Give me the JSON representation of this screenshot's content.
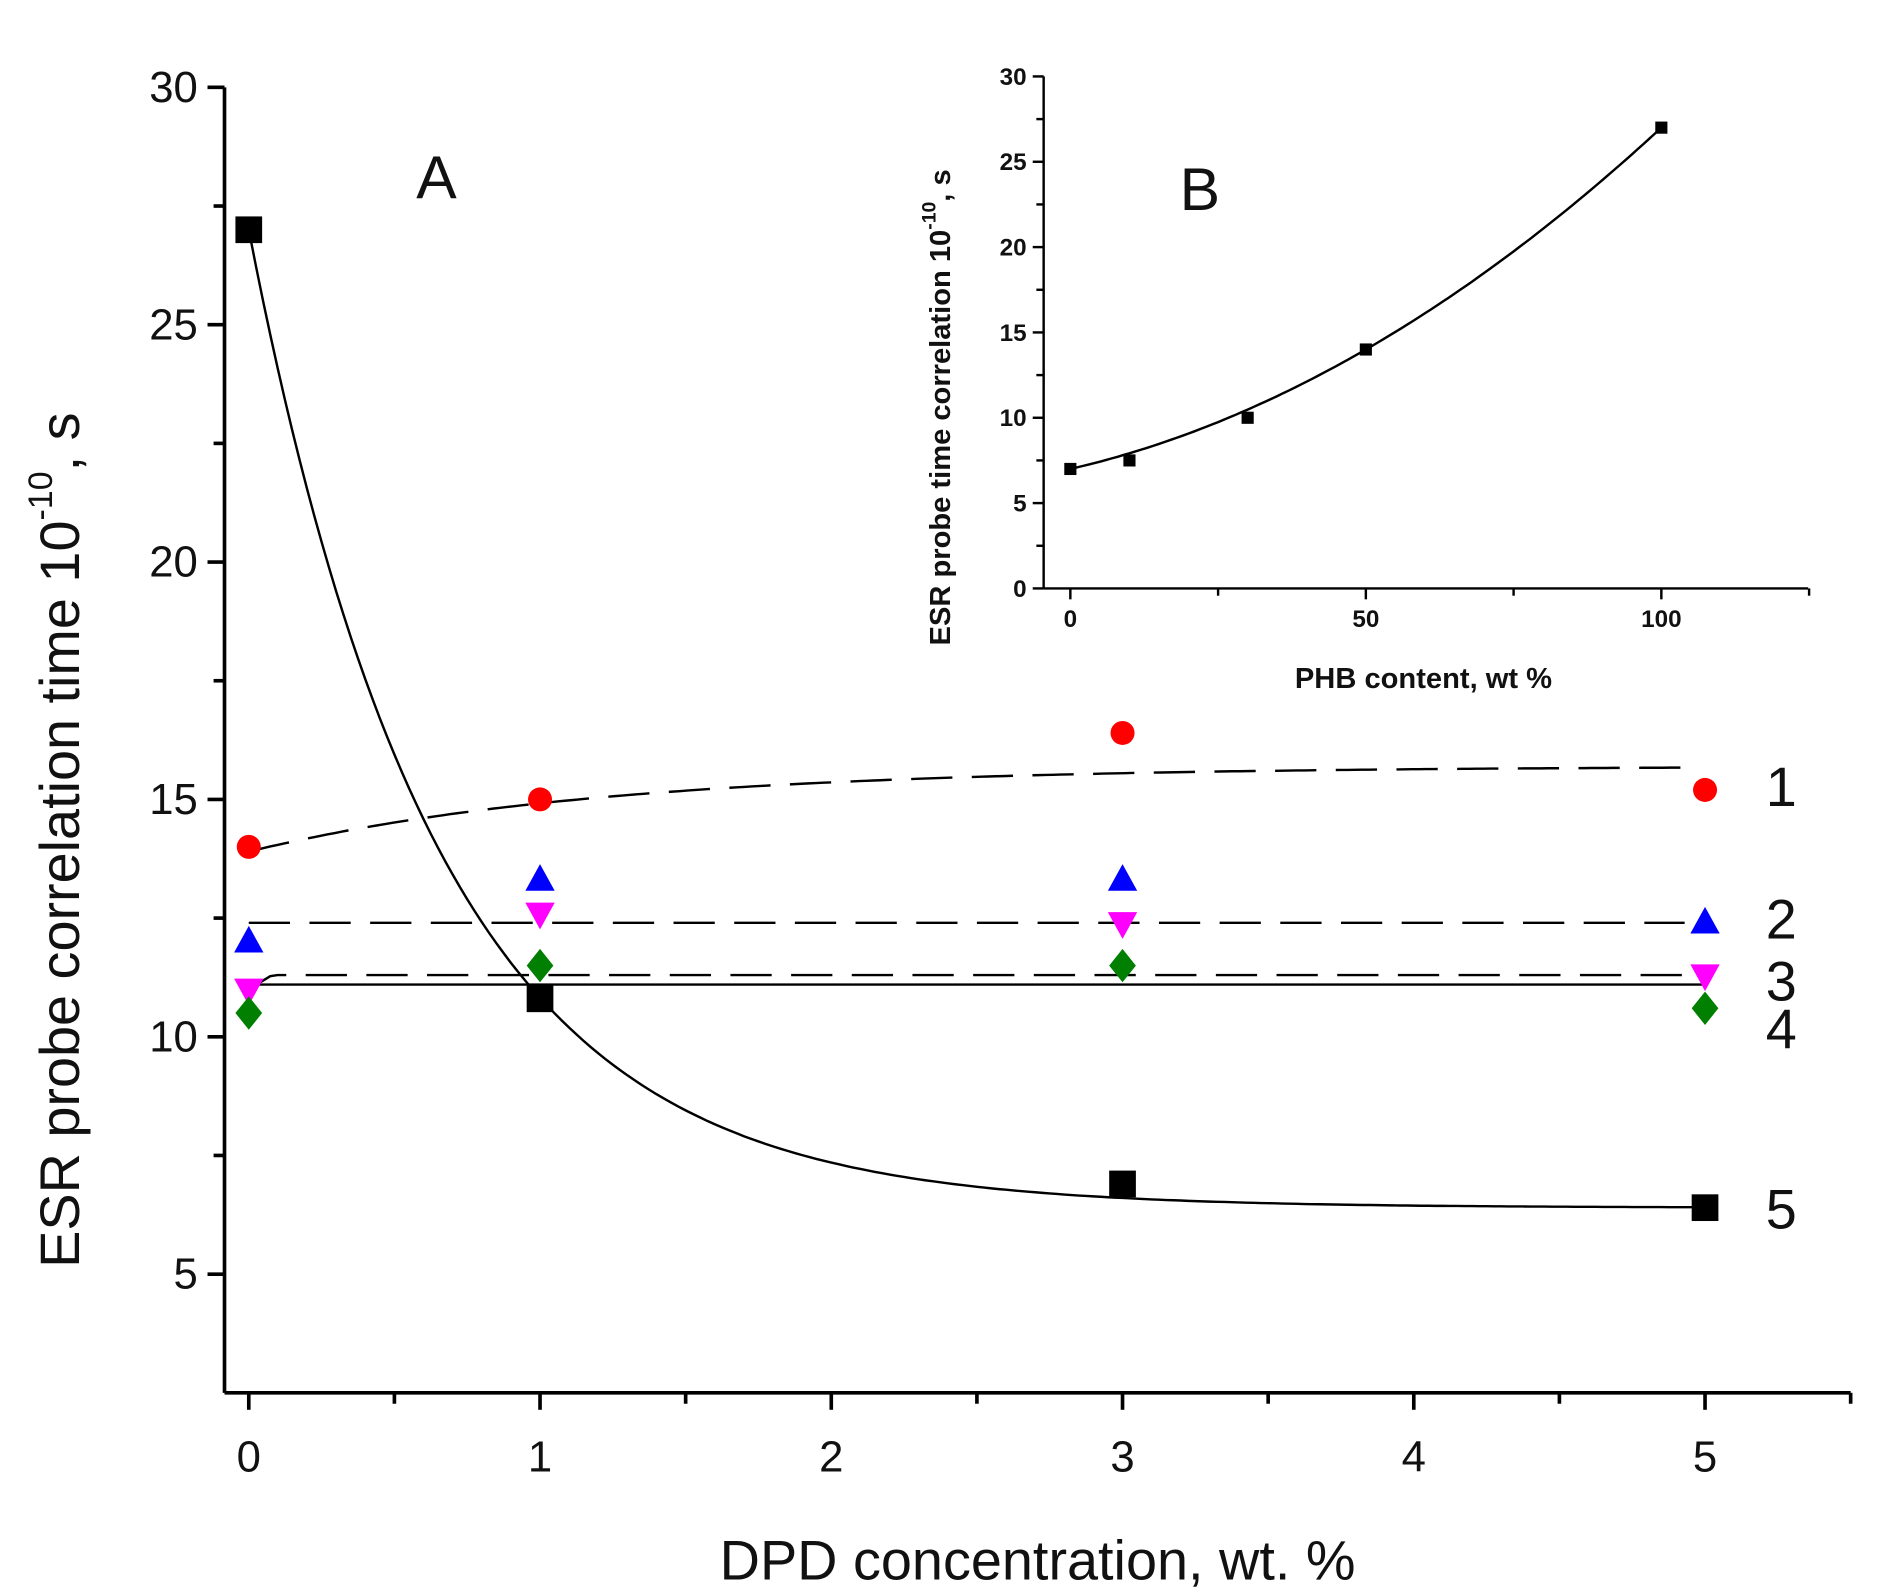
{
  "chart_data": [
    {
      "type": "scatter",
      "panel_label": "A",
      "xlabel": "DPD concentration, wt. %",
      "ylabel": {
        "text": "ESR probe correlation time 10",
        "sup": "-10",
        "suffix": ", s"
      },
      "xlim": [
        -0.08,
        5.5
      ],
      "ylim": [
        2.5,
        30
      ],
      "xticks": [
        "0",
        "1",
        "2",
        "3",
        "4",
        "5"
      ],
      "yticks": [
        "5",
        "10",
        "15",
        "20",
        "25",
        "30"
      ],
      "x": [
        0,
        1,
        3,
        5
      ],
      "series": [
        {
          "name": "1",
          "marker": "circle",
          "color": "#ff0000",
          "values": [
            14.0,
            15.0,
            16.4,
            15.2
          ],
          "fit": "dashed"
        },
        {
          "name": "2",
          "marker": "triangle-up",
          "color": "#0000ff",
          "values": [
            12.0,
            13.3,
            13.3,
            12.4
          ],
          "fit": "dashed"
        },
        {
          "name": "3",
          "marker": "triangle-down",
          "color": "#ff00ff",
          "values": [
            11.0,
            12.6,
            12.4,
            11.3
          ],
          "fit": "dashed"
        },
        {
          "name": "4",
          "marker": "diamond",
          "color": "#007f00",
          "values": [
            10.5,
            11.5,
            11.5,
            10.6
          ],
          "fit": "solid"
        },
        {
          "name": "5",
          "marker": "square",
          "color": "#000000",
          "values": [
            27.0,
            10.8,
            6.9,
            6.4
          ],
          "fit": "solid"
        }
      ]
    },
    {
      "type": "line",
      "panel_label": "B",
      "xlabel": "PHB content, wt %",
      "ylabel": {
        "text": "ESR probe time correlation 10",
        "sup": "-10",
        "suffix": ", s"
      },
      "xlim": [
        -9,
        125
      ],
      "ylim": [
        0,
        30
      ],
      "xticks": [
        "0",
        "50",
        "100"
      ],
      "yticks": [
        "0",
        "5",
        "10",
        "15",
        "20",
        "25",
        "30"
      ],
      "x": [
        0,
        10,
        30,
        50,
        100
      ],
      "values": [
        7,
        7.5,
        10,
        14,
        27
      ]
    }
  ]
}
